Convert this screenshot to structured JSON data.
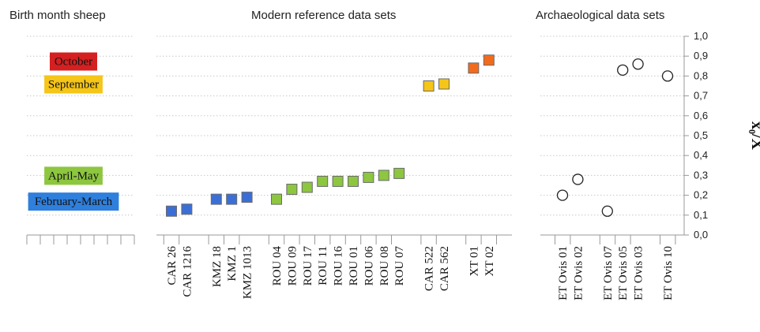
{
  "headers": {
    "left": "Birth month sheep",
    "middle": "Modern reference data sets",
    "right": "Archaeological data sets"
  },
  "chart_data": {
    "type": "scatter",
    "ylabel": "x₀/X",
    "ylim": [
      0,
      1
    ],
    "yticks": [
      "0,0",
      "0,1",
      "0,2",
      "0,3",
      "0,4",
      "0,5",
      "0,6",
      "0,7",
      "0,8",
      "0,9",
      "1,0"
    ],
    "grid": true,
    "month_bands": [
      {
        "label": "October",
        "color": "#d42020",
        "y": 0.875
      },
      {
        "label": "September",
        "color": "#f5c518",
        "y": 0.76
      },
      {
        "label": "April-May",
        "color": "#8dc63f",
        "y": 0.3
      },
      {
        "label": "February-March",
        "color": "#2f7fdc",
        "y": 0.17
      }
    ],
    "modern": {
      "groups": [
        {
          "color": "#3b6fd6",
          "points": [
            {
              "name": "CAR 26",
              "y": 0.12
            },
            {
              "name": "CAR 1216",
              "y": 0.13
            }
          ]
        },
        {
          "color": "#3b6fd6",
          "points": [
            {
              "name": "KMZ 18",
              "y": 0.18
            },
            {
              "name": "KMZ 1",
              "y": 0.18
            },
            {
              "name": "KMZ 1013",
              "y": 0.19
            }
          ]
        },
        {
          "color": "#8dc63f",
          "points": [
            {
              "name": "ROU 04",
              "y": 0.18
            },
            {
              "name": "ROU 09",
              "y": 0.23
            },
            {
              "name": "ROU 17",
              "y": 0.24
            },
            {
              "name": "ROU 11",
              "y": 0.27
            },
            {
              "name": "ROU 16",
              "y": 0.27
            },
            {
              "name": "ROU 01",
              "y": 0.27
            },
            {
              "name": "ROU 06",
              "y": 0.29
            },
            {
              "name": "ROU 08",
              "y": 0.3
            },
            {
              "name": "ROU 07",
              "y": 0.31
            }
          ]
        },
        {
          "color": "#f5c518",
          "points": [
            {
              "name": "CAR 522",
              "y": 0.75
            },
            {
              "name": "CAR 562",
              "y": 0.76
            }
          ]
        },
        {
          "color": "#f26b1d",
          "points": [
            {
              "name": "XT 01",
              "y": 0.84
            },
            {
              "name": "XT 02",
              "y": 0.88
            }
          ]
        }
      ]
    },
    "archaeological": {
      "groups": [
        {
          "points": [
            {
              "name": "ET Ovis 01",
              "y": 0.2
            },
            {
              "name": "ET Ovis 02",
              "y": 0.28
            }
          ]
        },
        {
          "points": [
            {
              "name": "ET Ovis 07",
              "y": 0.12
            },
            {
              "name": "ET Ovis 05",
              "y": 0.83
            },
            {
              "name": "ET Ovis 03",
              "y": 0.86
            }
          ]
        },
        {
          "points": [
            {
              "name": "ET Ovis 10",
              "y": 0.8
            }
          ]
        }
      ]
    }
  }
}
